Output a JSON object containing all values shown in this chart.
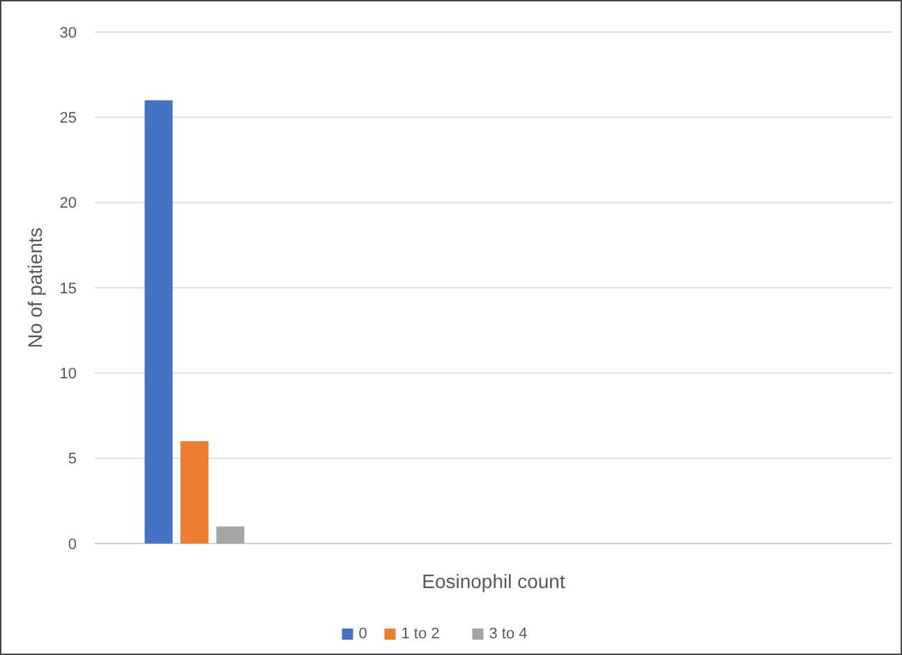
{
  "chart_data": {
    "type": "bar",
    "xlabel": "Eosinophil count",
    "ylabel": "No of patients",
    "categories": [
      null,
      null,
      null,
      null
    ],
    "series": [
      {
        "name": "0",
        "color": "#4472c4",
        "values": [
          26,
          null,
          null,
          null
        ]
      },
      {
        "name": "1 to 2",
        "color": "#ed7d31",
        "values": [
          6,
          null,
          null,
          null
        ]
      },
      {
        "name": "3 to 4",
        "color": "#a5a5a5",
        "values": [
          1,
          null,
          null,
          null
        ]
      }
    ],
    "ylim": [
      0,
      30
    ],
    "yticks": [
      0,
      5,
      10,
      15,
      20,
      25,
      30
    ],
    "grid": "y",
    "legend": "bottom"
  }
}
